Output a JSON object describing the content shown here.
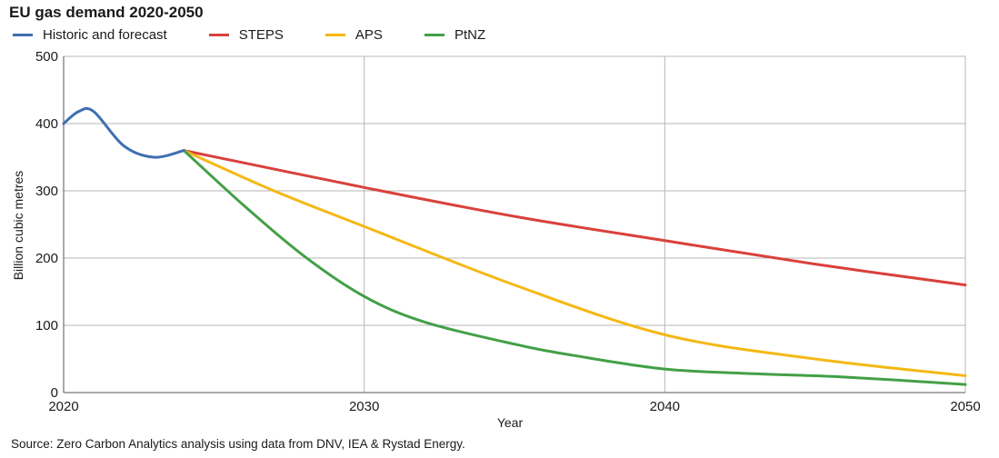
{
  "header": {
    "title": "EU gas demand 2020-2050"
  },
  "source": "Source: Zero Carbon Analytics analysis using data from DNV, IEA & Rystad Energy.",
  "chart_data": {
    "type": "line",
    "title": "EU gas demand 2020-2050",
    "xlabel": "Year",
    "ylabel": "Billion cubic metres",
    "xlim": [
      2020,
      2050
    ],
    "ylim": [
      0,
      500
    ],
    "x_ticks": [
      2020,
      2030,
      2040,
      2050
    ],
    "y_ticks": [
      0,
      100,
      200,
      300,
      400,
      500
    ],
    "grid": true,
    "legend_position": "top-left",
    "series": [
      {
        "name": "Historic and forecast",
        "color": "#3e6fb0",
        "x": [
          2020,
          2020.5,
          2021,
          2022,
          2023,
          2024
        ],
        "y": [
          400,
          418,
          418,
          367,
          350,
          360
        ]
      },
      {
        "name": "STEPS",
        "color": "#d9413b",
        "x": [
          2024,
          2030,
          2035,
          2040,
          2045,
          2050
        ],
        "y": [
          360,
          305,
          262,
          226,
          191,
          160
        ]
      },
      {
        "name": "APS",
        "color": "#f5b814",
        "x": [
          2024,
          2027,
          2030,
          2035,
          2040,
          2045,
          2050
        ],
        "y": [
          360,
          300,
          247,
          160,
          86,
          50,
          25
        ]
      },
      {
        "name": "PtNZ",
        "color": "#43a047",
        "x": [
          2024,
          2026,
          2028,
          2030,
          2032,
          2035,
          2037,
          2040,
          2043,
          2046,
          2050
        ],
        "y": [
          360,
          278,
          203,
          143,
          105,
          72,
          55,
          35,
          28,
          23,
          12
        ]
      }
    ]
  }
}
